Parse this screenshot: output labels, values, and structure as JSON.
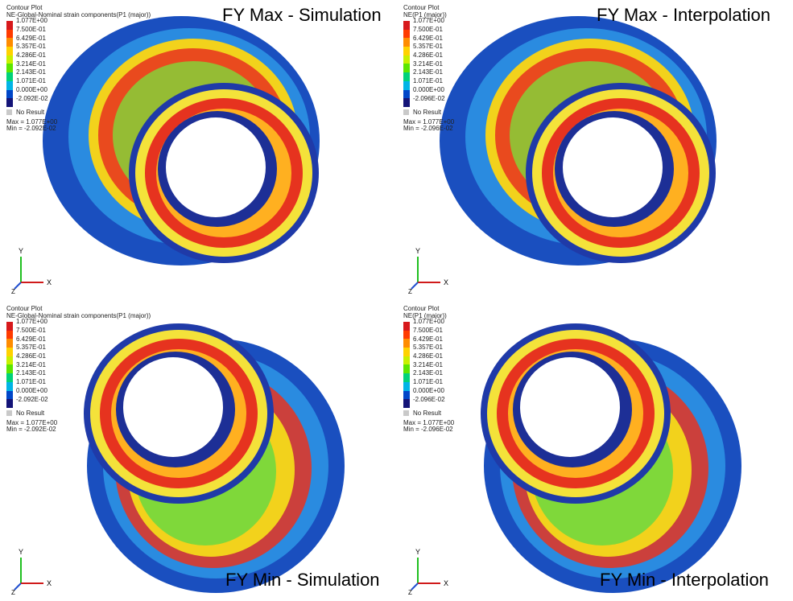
{
  "panels": [
    {
      "title": "FY Max - Simulation",
      "legend_title": "Contour Plot",
      "legend_subtitle": "NE-Global-Nominal strain components(P1 (major))",
      "levels": [
        "1.077E+00",
        "7.500E-01",
        "6.429E-01",
        "5.357E-01",
        "4.286E-01",
        "3.214E-01",
        "2.143E-01",
        "1.071E-01",
        "0.000E+00",
        "-2.092E-02"
      ],
      "no_result": "No Result",
      "max": "Max = 1.077E+00",
      "min": "Min = -2.092E-02"
    },
    {
      "title": "FY Max - Interpolation",
      "legend_title": "Contour Plot",
      "legend_subtitle": "NE(P1 (major))",
      "levels": [
        "1.077E+00",
        "7.500E-01",
        "6.429E-01",
        "5.357E-01",
        "4.286E-01",
        "3.214E-01",
        "2.143E-01",
        "1.071E-01",
        "0.000E+00",
        "-2.096E-02"
      ],
      "no_result": "No Result",
      "max": "Max = 1.077E+00",
      "min": "Min = -2.096E-02"
    },
    {
      "title": "FY Min - Simulation",
      "legend_title": "Contour Plot",
      "legend_subtitle": "NE-Global-Nominal strain components(P1 (major))",
      "levels": [
        "1.077E+00",
        "7.500E-01",
        "6.429E-01",
        "5.357E-01",
        "4.286E-01",
        "3.214E-01",
        "2.143E-01",
        "1.071E-01",
        "0.000E+00",
        "-2.092E-02"
      ],
      "no_result": "No Result",
      "max": "Max = 1.077E+00",
      "min": "Min = -2.092E-02"
    },
    {
      "title": "FY Min - Interpolation",
      "legend_title": "Contour Plot",
      "legend_subtitle": "NE(P1 (major))",
      "levels": [
        "1.077E+00",
        "7.500E-01",
        "6.429E-01",
        "5.357E-01",
        "4.286E-01",
        "3.214E-01",
        "2.143E-01",
        "1.071E-01",
        "0.000E+00",
        "-2.096E-02"
      ],
      "no_result": "No Result",
      "max": "Max = 1.077E+00",
      "min": "Min = -2.096E-02"
    }
  ],
  "axis_labels": {
    "x": "X",
    "y": "Y",
    "z": "Z"
  },
  "colors": {
    "swatches": [
      "#d7191c",
      "#ff3b00",
      "#ff8c00",
      "#ffd200",
      "#c8f000",
      "#5ce600",
      "#00d27a",
      "#00b4e6",
      "#0046c8",
      "#141478"
    ],
    "no_result": "#c9c9c9"
  }
}
